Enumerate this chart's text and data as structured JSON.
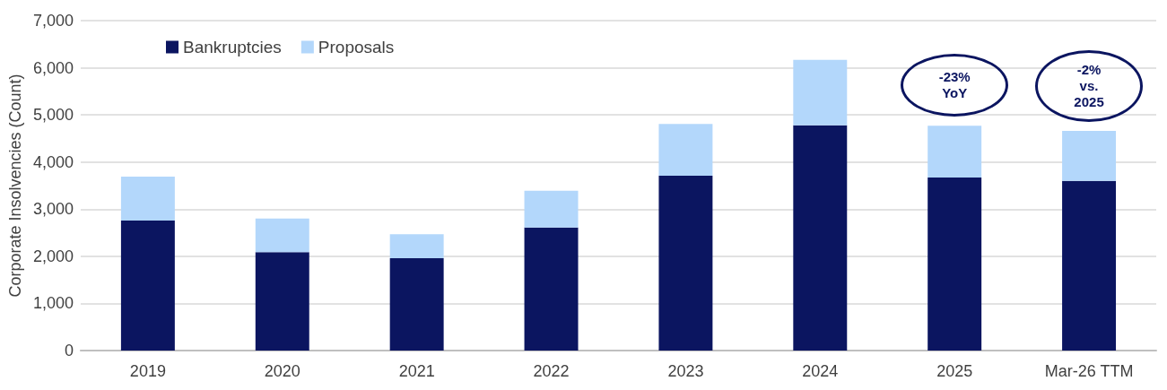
{
  "chart_data": {
    "type": "bar",
    "ylabel": "Corporate Insolvencies (Count)",
    "categories": [
      "2019",
      "2020",
      "2021",
      "2022",
      "2023",
      "2024",
      "2025",
      "Mar-26 TTM"
    ],
    "stacked": true,
    "series": [
      {
        "name": "Bankruptcies",
        "color": "#0b1560",
        "values": [
          2760,
          2090,
          1960,
          2610,
          3710,
          4780,
          3670,
          3600
        ]
      },
      {
        "name": "Proposals",
        "color": "#b3d7fb",
        "values": [
          930,
          710,
          510,
          780,
          1100,
          1390,
          1100,
          1060
        ]
      }
    ],
    "ylim": [
      0,
      7000
    ],
    "yticks": [
      0,
      {
        "value": 1000,
        "label": "1,000"
      },
      {
        "value": 2000,
        "label": "2,000"
      },
      {
        "value": 3000,
        "label": "3,000"
      },
      {
        "value": 4000,
        "label": "4,000"
      },
      {
        "value": 5000,
        "label": "5,000"
      },
      {
        "value": 6000,
        "label": "6,000"
      },
      {
        "value": 7000,
        "label": "7,000"
      }
    ],
    "grid": "y",
    "legend": "top left",
    "annotations": [
      "-23%\nYoY",
      "-2%\nvs.\n2025"
    ]
  }
}
